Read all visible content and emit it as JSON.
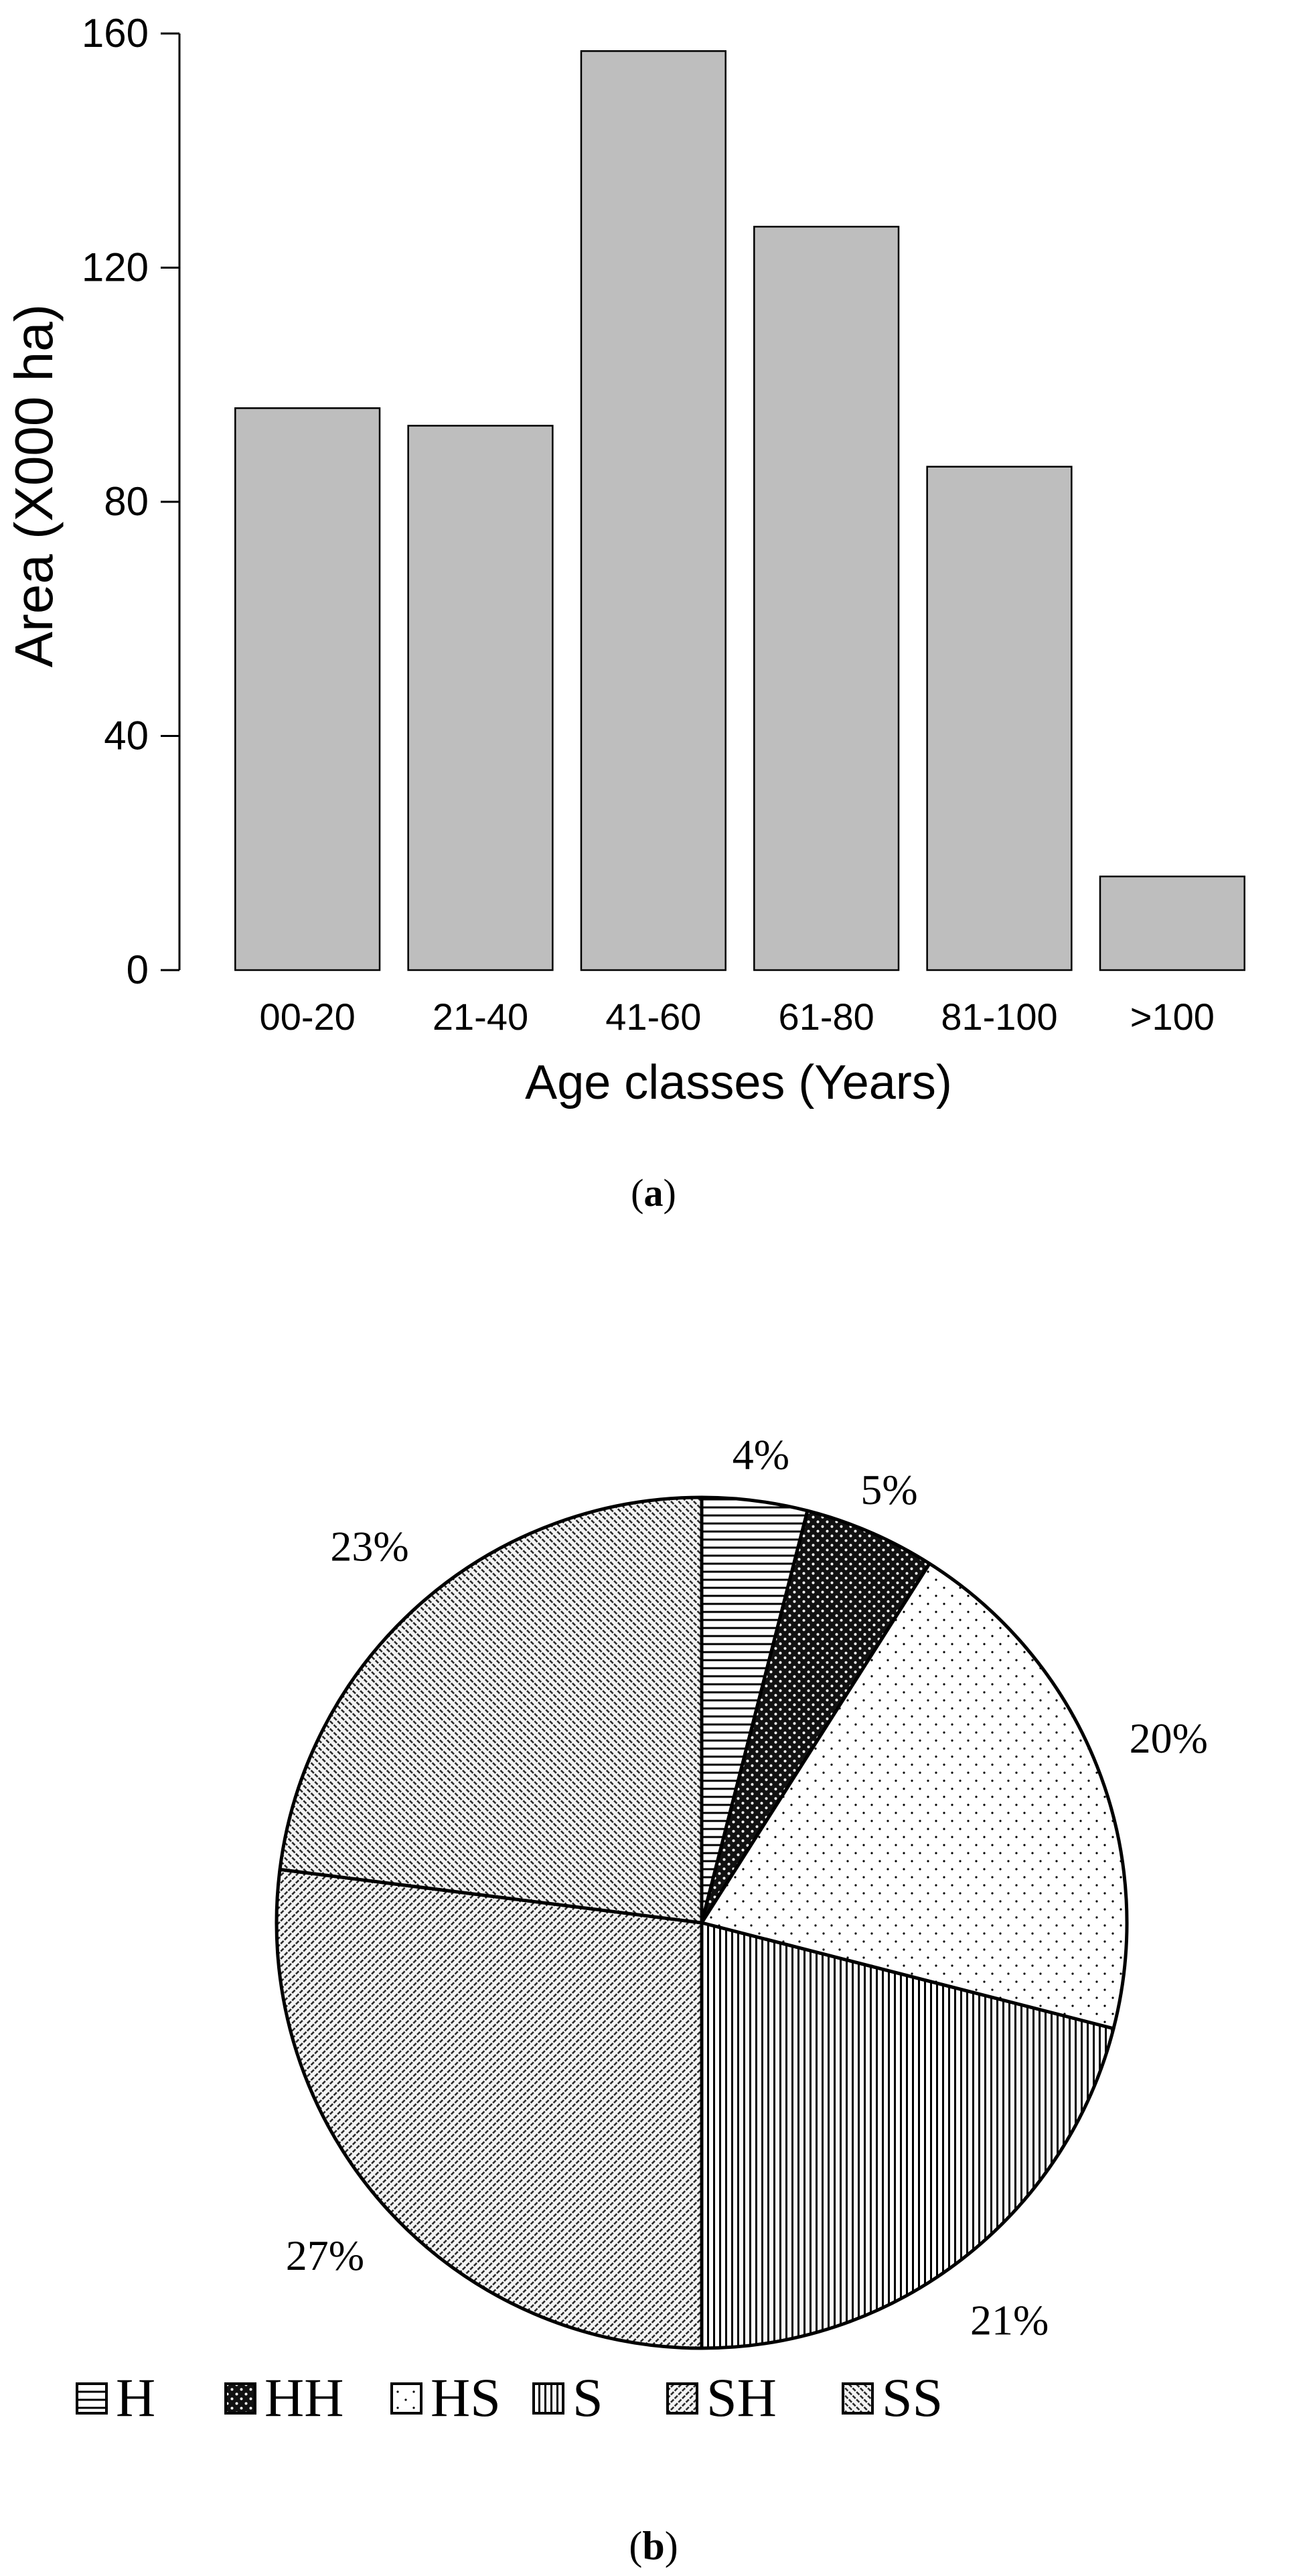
{
  "chart_data": [
    {
      "type": "bar",
      "panel_label": "a",
      "xlabel": "Age classes (Years)",
      "ylabel": "Area (X000 ha)",
      "categories": [
        "00-20",
        "21-40",
        "41-60",
        "61-80",
        "81-100",
        ">100"
      ],
      "values": [
        96,
        93,
        157,
        127,
        86,
        16
      ],
      "ylim": [
        0,
        160
      ],
      "yticks": [
        0,
        40,
        80,
        120,
        160
      ],
      "bar_color": "#bebebe",
      "grid": false
    },
    {
      "type": "pie",
      "panel_label": "b",
      "legend_position": "bottom",
      "slices": [
        {
          "label": "H",
          "value": 4,
          "pct_label": "4%",
          "pattern": "horizontal-lines"
        },
        {
          "label": "HH",
          "value": 5,
          "pct_label": "5%",
          "pattern": "dark-dots"
        },
        {
          "label": "HS",
          "value": 20,
          "pct_label": "20%",
          "pattern": "sparse-dots"
        },
        {
          "label": "S",
          "value": 21,
          "pct_label": "21%",
          "pattern": "vertical-lines"
        },
        {
          "label": "SH",
          "value": 27,
          "pct_label": "27%",
          "pattern": "diagonal-forward"
        },
        {
          "label": "SS",
          "value": 23,
          "pct_label": "23%",
          "pattern": "diagonal-back"
        }
      ]
    }
  ]
}
